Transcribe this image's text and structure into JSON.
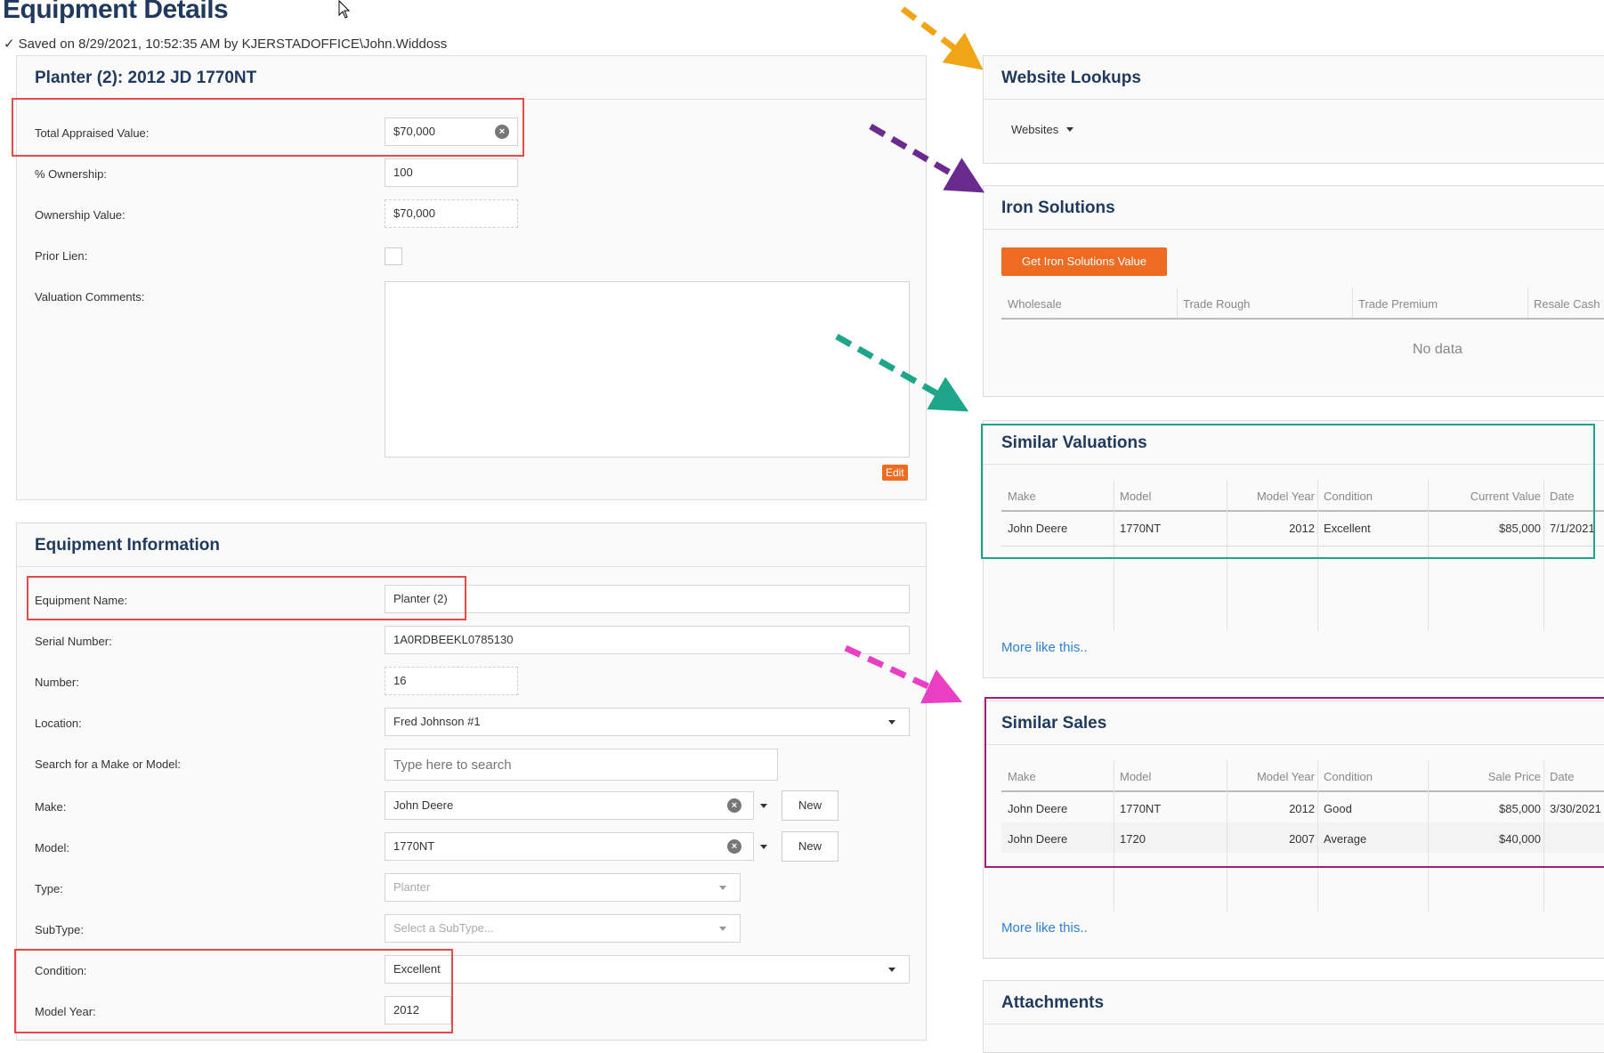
{
  "header": {
    "title": "Equipment Details",
    "saved_status": "Saved on 8/29/2021, 10:52:35 AM by KJERSTADOFFICE\\John.Widdoss"
  },
  "valuation_panel": {
    "title": "Planter (2): 2012 JD 1770NT",
    "total_appraised_label": "Total Appraised Value:",
    "total_appraised_value": "$70,000",
    "ownership_pct_label": "% Ownership:",
    "ownership_pct_value": "100",
    "ownership_value_label": "Ownership Value:",
    "ownership_value_value": "$70,000",
    "prior_lien_label": "Prior Lien:",
    "prior_lien_checked": false,
    "comments_label": "Valuation Comments:",
    "comments_value": "",
    "edit_label": "Edit"
  },
  "equipment_panel": {
    "title": "Equipment Information",
    "name_label": "Equipment Name:",
    "name_value": "Planter (2)",
    "serial_label": "Serial Number:",
    "serial_value": "1A0RDBEEKL0785130",
    "number_label": "Number:",
    "number_value": "16",
    "location_label": "Location:",
    "location_value": "Fred Johnson #1",
    "search_label": "Search for a Make or Model:",
    "search_placeholder": "Type here to search",
    "make_label": "Make:",
    "make_value": "John Deere",
    "model_label": "Model:",
    "model_value": "1770NT",
    "new_label": "New",
    "type_label": "Type:",
    "type_value": "Planter",
    "subtype_label": "SubType:",
    "subtype_placeholder": "Select a SubType...",
    "condition_label": "Condition:",
    "condition_value": "Excellent",
    "model_year_label": "Model Year:",
    "model_year_value": "2012"
  },
  "website_lookups": {
    "title": "Website Lookups",
    "dropdown_label": "Websites"
  },
  "iron_solutions": {
    "title": "Iron Solutions",
    "button_label": "Get Iron Solutions Value",
    "columns": [
      "Wholesale",
      "Trade Rough",
      "Trade Premium",
      "Resale Cash"
    ],
    "empty_text": "No data"
  },
  "similar_valuations": {
    "title": "Similar Valuations",
    "columns": [
      "Make",
      "Model",
      "Model Year",
      "Condition",
      "Current Value",
      "Date"
    ],
    "rows": [
      [
        "John Deere",
        "1770NT",
        "2012",
        "Excellent",
        "$85,000",
        "7/1/2021"
      ]
    ],
    "more_link": "More like this.."
  },
  "similar_sales": {
    "title": "Similar Sales",
    "columns": [
      "Make",
      "Model",
      "Model Year",
      "Condition",
      "Sale Price",
      "Date"
    ],
    "rows": [
      [
        "John Deere",
        "1770NT",
        "2012",
        "Good",
        "$85,000",
        "3/30/2021"
      ],
      [
        "John Deere",
        "1720",
        "2007",
        "Average",
        "$40,000",
        ""
      ]
    ],
    "more_link": "More like this.."
  },
  "attachments": {
    "title": "Attachments"
  },
  "colors": {
    "accent_orange": "#ee6c22",
    "title_navy": "#1f3a5c",
    "link_blue": "#2f7fd1",
    "highlight_red": "#e74848",
    "highlight_teal": "#1ea58a",
    "highlight_purple": "#9b1f7b",
    "arrow_gold": "#f0a517",
    "arrow_purple": "#6b2a8e",
    "arrow_teal": "#1ea58a",
    "arrow_pink": "#e83fc4"
  }
}
